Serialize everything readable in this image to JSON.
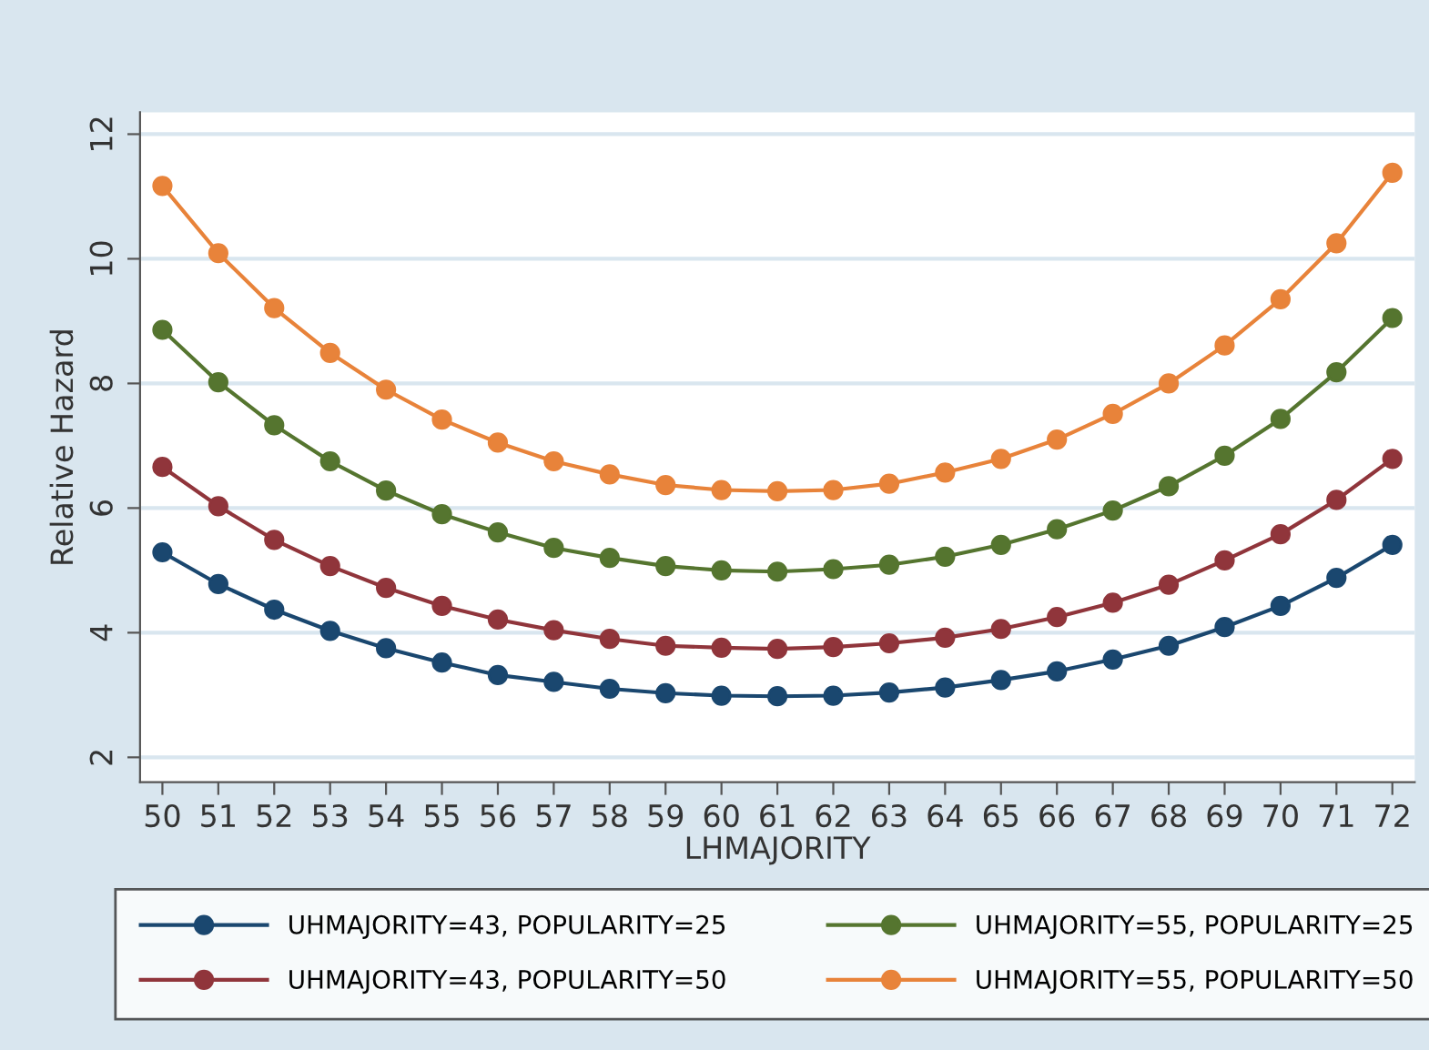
{
  "chart_data": {
    "type": "line",
    "xlabel": "LHMAJORITY",
    "ylabel": "Relative Hazard",
    "x": [
      50,
      51,
      52,
      53,
      54,
      55,
      56,
      57,
      58,
      59,
      60,
      61,
      62,
      63,
      64,
      65,
      66,
      67,
      68,
      69,
      70,
      71,
      72
    ],
    "xlim": [
      49.6,
      72.4
    ],
    "ylim": [
      1.6,
      12.35
    ],
    "xticks": [
      50,
      51,
      52,
      53,
      54,
      55,
      56,
      57,
      58,
      59,
      60,
      61,
      62,
      63,
      64,
      65,
      66,
      67,
      68,
      69,
      70,
      71,
      72
    ],
    "yticks": [
      2,
      4,
      6,
      8,
      10,
      12
    ],
    "grid": "y",
    "legend": "bottom",
    "marker": "circle",
    "line_style": "solid",
    "series": [
      {
        "name": "UHMAJORITY=43, POPULARITY=25",
        "color": "#1a476f",
        "values": [
          5.29,
          4.78,
          4.37,
          4.03,
          3.75,
          3.52,
          3.32,
          3.21,
          3.1,
          3.03,
          2.99,
          2.98,
          2.99,
          3.04,
          3.12,
          3.24,
          3.38,
          3.57,
          3.79,
          4.09,
          4.43,
          4.88,
          5.41
        ]
      },
      {
        "name": "UHMAJORITY=43, POPULARITY=50",
        "color": "#90353b",
        "values": [
          6.66,
          6.03,
          5.49,
          5.07,
          4.72,
          4.43,
          4.21,
          4.04,
          3.9,
          3.79,
          3.76,
          3.74,
          3.77,
          3.83,
          3.92,
          4.06,
          4.25,
          4.48,
          4.77,
          5.16,
          5.58,
          6.13,
          6.79
        ]
      },
      {
        "name": "UHMAJORITY=55, POPULARITY=25",
        "color": "#55752f",
        "values": [
          8.86,
          8.02,
          7.33,
          6.75,
          6.28,
          5.9,
          5.61,
          5.36,
          5.2,
          5.07,
          5.0,
          4.98,
          5.02,
          5.09,
          5.22,
          5.41,
          5.66,
          5.96,
          6.35,
          6.84,
          7.43,
          8.18,
          9.05
        ]
      },
      {
        "name": "UHMAJORITY=55, POPULARITY=50",
        "color": "#e8833a",
        "values": [
          11.17,
          10.09,
          9.21,
          8.49,
          7.9,
          7.42,
          7.05,
          6.75,
          6.54,
          6.37,
          6.29,
          6.27,
          6.29,
          6.39,
          6.57,
          6.79,
          7.1,
          7.51,
          8.0,
          8.61,
          9.35,
          10.25,
          11.38
        ]
      }
    ]
  }
}
